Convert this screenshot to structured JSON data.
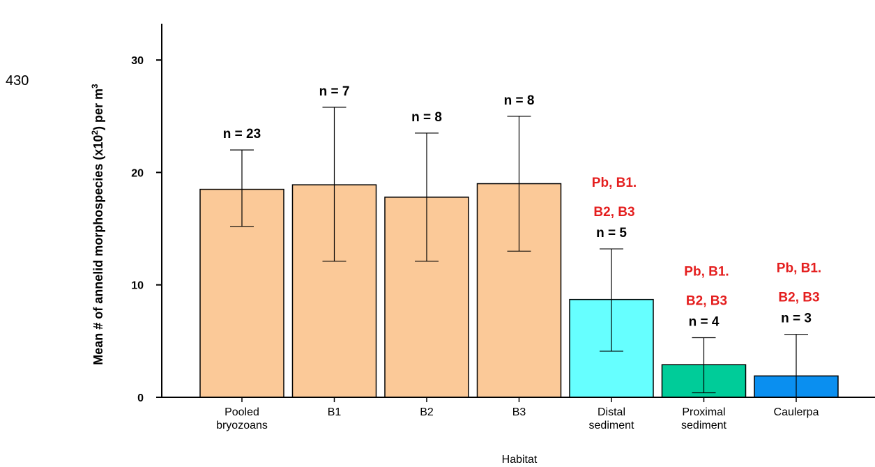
{
  "page_number": "430",
  "chart_data": {
    "type": "bar",
    "xlabel": "Habitat",
    "ylabel": "Mean # of annelid morphospecies (x10",
    "ylabel_sup1": "2",
    "ylabel_mid": ") per m",
    "ylabel_sup2": "3",
    "ylim": [
      0,
      33
    ],
    "yticks": [
      0,
      10,
      20,
      30
    ],
    "grid": false,
    "categories": [
      [
        "Pooled",
        "bryozoans"
      ],
      [
        "B1"
      ],
      [
        "B2"
      ],
      [
        "B3"
      ],
      [
        "Distal",
        "sediment"
      ],
      [
        "Proximal",
        "sediment"
      ],
      [
        "Caulerpa"
      ]
    ],
    "values": [
      18.5,
      18.9,
      17.8,
      19.0,
      8.7,
      2.9,
      1.9
    ],
    "error_low": [
      15.2,
      12.1,
      12.1,
      13.0,
      4.1,
      0.4,
      0.0
    ],
    "error_high": [
      22.0,
      25.8,
      23.5,
      25.0,
      13.2,
      5.3,
      5.6
    ],
    "colors": [
      "#fbc998",
      "#fbc998",
      "#fbc998",
      "#fbc998",
      "#66ffff",
      "#00cc99",
      "#0a8ff0"
    ],
    "n_labels": [
      "n = 23",
      "n = 7",
      "n = 8",
      "n = 8",
      "n = 5",
      "n = 4",
      "n = 3"
    ],
    "sig_labels": [
      [],
      [],
      [],
      [],
      [
        "Pb, B1.",
        "B2, B3"
      ],
      [
        "Pb, B1.",
        "B2, B3"
      ],
      [
        "Pb, B1.",
        "B2, B3"
      ]
    ],
    "sig_color": "#e41e1e"
  }
}
